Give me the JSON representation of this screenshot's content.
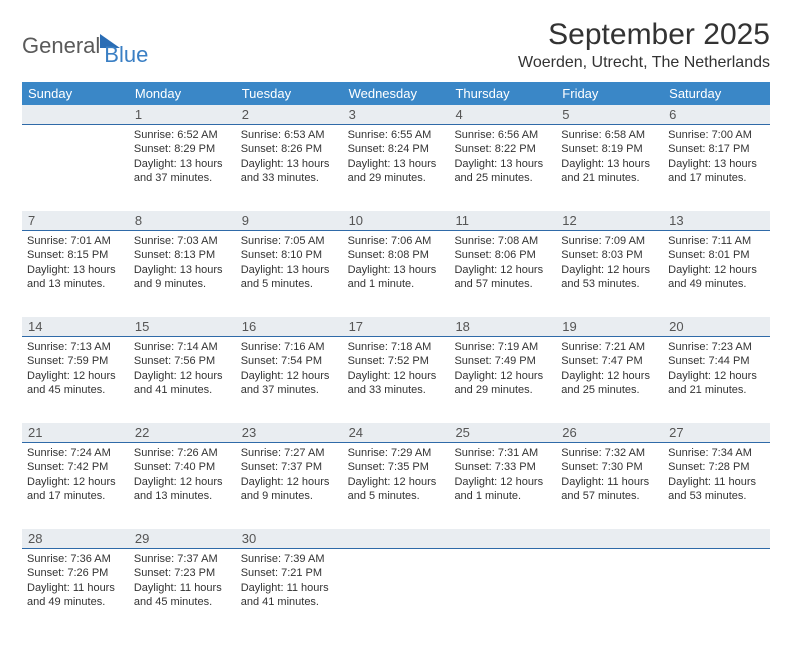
{
  "logo": {
    "part1": "General",
    "part2": "Blue"
  },
  "title": "September 2025",
  "location": "Woerden, Utrecht, The Netherlands",
  "colors": {
    "header_bg": "#3a87c7",
    "header_text": "#ffffff",
    "daynum_bg": "#e9edf1",
    "daynum_border": "#2f6aa8",
    "text": "#333333",
    "logo_gray": "#5a5a5a",
    "logo_blue": "#3a7fc4"
  },
  "day_names": [
    "Sunday",
    "Monday",
    "Tuesday",
    "Wednesday",
    "Thursday",
    "Friday",
    "Saturday"
  ],
  "weeks": [
    {
      "nums": [
        "",
        "1",
        "2",
        "3",
        "4",
        "5",
        "6"
      ],
      "cells": [
        {
          "sunrise": "",
          "sunset": "",
          "daylight": ""
        },
        {
          "sunrise": "Sunrise: 6:52 AM",
          "sunset": "Sunset: 8:29 PM",
          "daylight": "Daylight: 13 hours and 37 minutes."
        },
        {
          "sunrise": "Sunrise: 6:53 AM",
          "sunset": "Sunset: 8:26 PM",
          "daylight": "Daylight: 13 hours and 33 minutes."
        },
        {
          "sunrise": "Sunrise: 6:55 AM",
          "sunset": "Sunset: 8:24 PM",
          "daylight": "Daylight: 13 hours and 29 minutes."
        },
        {
          "sunrise": "Sunrise: 6:56 AM",
          "sunset": "Sunset: 8:22 PM",
          "daylight": "Daylight: 13 hours and 25 minutes."
        },
        {
          "sunrise": "Sunrise: 6:58 AM",
          "sunset": "Sunset: 8:19 PM",
          "daylight": "Daylight: 13 hours and 21 minutes."
        },
        {
          "sunrise": "Sunrise: 7:00 AM",
          "sunset": "Sunset: 8:17 PM",
          "daylight": "Daylight: 13 hours and 17 minutes."
        }
      ]
    },
    {
      "nums": [
        "7",
        "8",
        "9",
        "10",
        "11",
        "12",
        "13"
      ],
      "cells": [
        {
          "sunrise": "Sunrise: 7:01 AM",
          "sunset": "Sunset: 8:15 PM",
          "daylight": "Daylight: 13 hours and 13 minutes."
        },
        {
          "sunrise": "Sunrise: 7:03 AM",
          "sunset": "Sunset: 8:13 PM",
          "daylight": "Daylight: 13 hours and 9 minutes."
        },
        {
          "sunrise": "Sunrise: 7:05 AM",
          "sunset": "Sunset: 8:10 PM",
          "daylight": "Daylight: 13 hours and 5 minutes."
        },
        {
          "sunrise": "Sunrise: 7:06 AM",
          "sunset": "Sunset: 8:08 PM",
          "daylight": "Daylight: 13 hours and 1 minute."
        },
        {
          "sunrise": "Sunrise: 7:08 AM",
          "sunset": "Sunset: 8:06 PM",
          "daylight": "Daylight: 12 hours and 57 minutes."
        },
        {
          "sunrise": "Sunrise: 7:09 AM",
          "sunset": "Sunset: 8:03 PM",
          "daylight": "Daylight: 12 hours and 53 minutes."
        },
        {
          "sunrise": "Sunrise: 7:11 AM",
          "sunset": "Sunset: 8:01 PM",
          "daylight": "Daylight: 12 hours and 49 minutes."
        }
      ]
    },
    {
      "nums": [
        "14",
        "15",
        "16",
        "17",
        "18",
        "19",
        "20"
      ],
      "cells": [
        {
          "sunrise": "Sunrise: 7:13 AM",
          "sunset": "Sunset: 7:59 PM",
          "daylight": "Daylight: 12 hours and 45 minutes."
        },
        {
          "sunrise": "Sunrise: 7:14 AM",
          "sunset": "Sunset: 7:56 PM",
          "daylight": "Daylight: 12 hours and 41 minutes."
        },
        {
          "sunrise": "Sunrise: 7:16 AM",
          "sunset": "Sunset: 7:54 PM",
          "daylight": "Daylight: 12 hours and 37 minutes."
        },
        {
          "sunrise": "Sunrise: 7:18 AM",
          "sunset": "Sunset: 7:52 PM",
          "daylight": "Daylight: 12 hours and 33 minutes."
        },
        {
          "sunrise": "Sunrise: 7:19 AM",
          "sunset": "Sunset: 7:49 PM",
          "daylight": "Daylight: 12 hours and 29 minutes."
        },
        {
          "sunrise": "Sunrise: 7:21 AM",
          "sunset": "Sunset: 7:47 PM",
          "daylight": "Daylight: 12 hours and 25 minutes."
        },
        {
          "sunrise": "Sunrise: 7:23 AM",
          "sunset": "Sunset: 7:44 PM",
          "daylight": "Daylight: 12 hours and 21 minutes."
        }
      ]
    },
    {
      "nums": [
        "21",
        "22",
        "23",
        "24",
        "25",
        "26",
        "27"
      ],
      "cells": [
        {
          "sunrise": "Sunrise: 7:24 AM",
          "sunset": "Sunset: 7:42 PM",
          "daylight": "Daylight: 12 hours and 17 minutes."
        },
        {
          "sunrise": "Sunrise: 7:26 AM",
          "sunset": "Sunset: 7:40 PM",
          "daylight": "Daylight: 12 hours and 13 minutes."
        },
        {
          "sunrise": "Sunrise: 7:27 AM",
          "sunset": "Sunset: 7:37 PM",
          "daylight": "Daylight: 12 hours and 9 minutes."
        },
        {
          "sunrise": "Sunrise: 7:29 AM",
          "sunset": "Sunset: 7:35 PM",
          "daylight": "Daylight: 12 hours and 5 minutes."
        },
        {
          "sunrise": "Sunrise: 7:31 AM",
          "sunset": "Sunset: 7:33 PM",
          "daylight": "Daylight: 12 hours and 1 minute."
        },
        {
          "sunrise": "Sunrise: 7:32 AM",
          "sunset": "Sunset: 7:30 PM",
          "daylight": "Daylight: 11 hours and 57 minutes."
        },
        {
          "sunrise": "Sunrise: 7:34 AM",
          "sunset": "Sunset: 7:28 PM",
          "daylight": "Daylight: 11 hours and 53 minutes."
        }
      ]
    },
    {
      "nums": [
        "28",
        "29",
        "30",
        "",
        "",
        "",
        ""
      ],
      "cells": [
        {
          "sunrise": "Sunrise: 7:36 AM",
          "sunset": "Sunset: 7:26 PM",
          "daylight": "Daylight: 11 hours and 49 minutes."
        },
        {
          "sunrise": "Sunrise: 7:37 AM",
          "sunset": "Sunset: 7:23 PM",
          "daylight": "Daylight: 11 hours and 45 minutes."
        },
        {
          "sunrise": "Sunrise: 7:39 AM",
          "sunset": "Sunset: 7:21 PM",
          "daylight": "Daylight: 11 hours and 41 minutes."
        },
        {
          "sunrise": "",
          "sunset": "",
          "daylight": ""
        },
        {
          "sunrise": "",
          "sunset": "",
          "daylight": ""
        },
        {
          "sunrise": "",
          "sunset": "",
          "daylight": ""
        },
        {
          "sunrise": "",
          "sunset": "",
          "daylight": ""
        }
      ]
    }
  ]
}
